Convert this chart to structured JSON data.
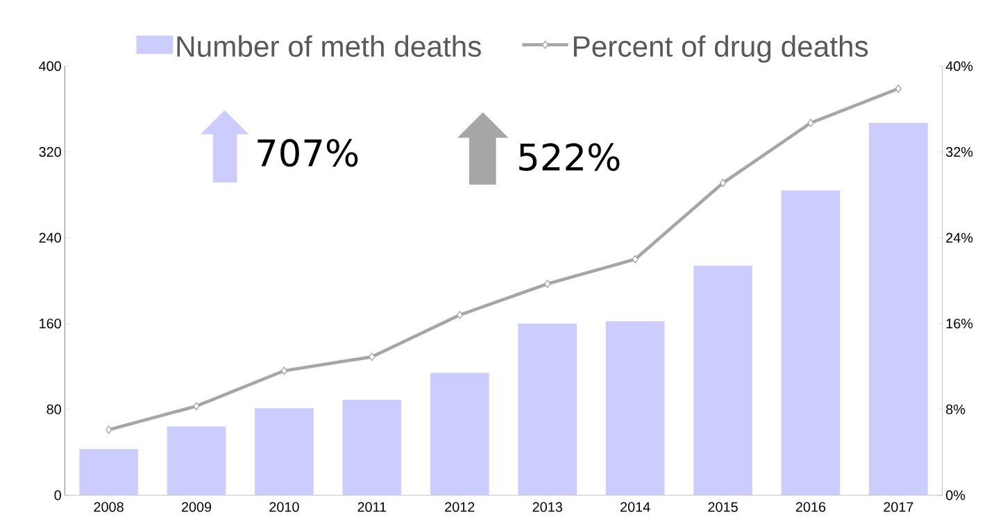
{
  "chart_data": {
    "type": "bar",
    "categories": [
      "2008",
      "2009",
      "2010",
      "2011",
      "2012",
      "2013",
      "2014",
      "2015",
      "2016",
      "2017"
    ],
    "series": [
      {
        "name": "Number of meth deaths",
        "color": "#ccccff",
        "values": [
          43,
          64,
          81,
          89,
          114,
          160,
          162,
          214,
          284,
          347
        ]
      },
      {
        "name": "Percent of drug deaths",
        "type": "line",
        "axis": "y2",
        "color": "#a6a6a6",
        "values": [
          6.1,
          8.3,
          11.6,
          12.9,
          16.8,
          19.7,
          22.0,
          29.1,
          34.7,
          37.9
        ]
      }
    ],
    "ylim": [
      0,
      400
    ],
    "yticks": [
      0,
      80,
      160,
      240,
      320,
      400
    ],
    "y2lim": [
      0,
      40
    ],
    "y2ticks": [
      {
        "value": 0,
        "label": "0%"
      },
      {
        "value": 8,
        "label": "8%"
      },
      {
        "value": 16,
        "label": "16%"
      },
      {
        "value": 24,
        "label": "24%"
      },
      {
        "value": 32,
        "label": "32%"
      },
      {
        "value": 40,
        "label": "40%"
      }
    ],
    "legend": "top",
    "marker": "diamond",
    "line_style": "solid",
    "annotations": [
      "707%",
      "522%"
    ]
  }
}
